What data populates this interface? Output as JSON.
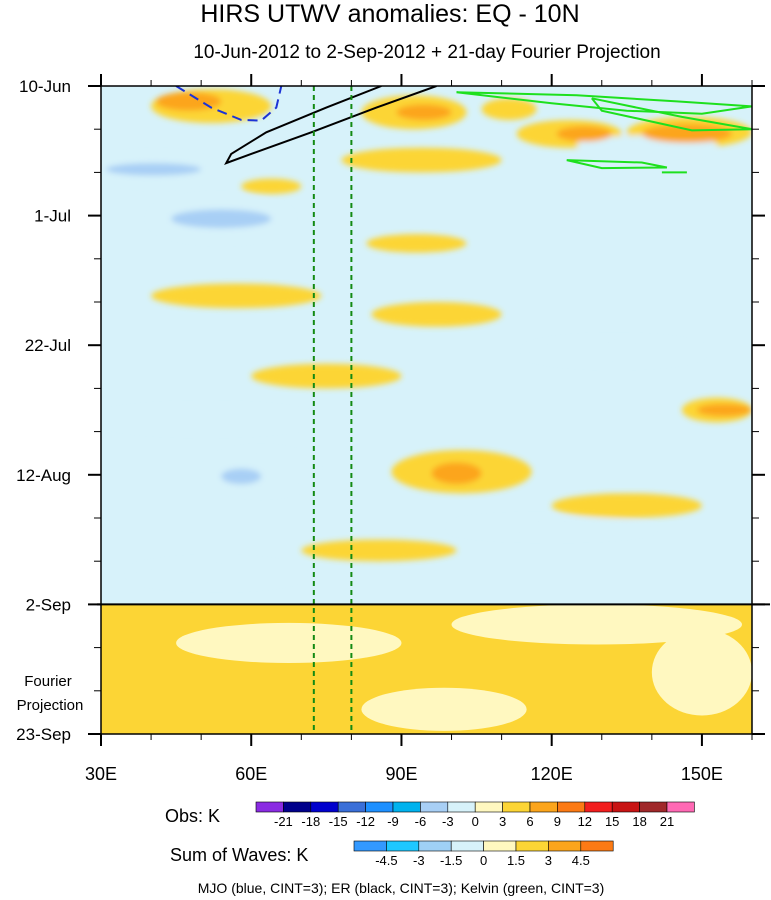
{
  "chart_data": {
    "type": "heatmap",
    "title": "HIRS UTWV anomalies: EQ - 10N",
    "subtitle": "10-Jun-2012 to 2-Sep-2012 + 21-day Fourier Projection",
    "x_range": [
      30,
      160
    ],
    "x_ticks": [
      30,
      60,
      90,
      120,
      150
    ],
    "x_tick_labels": [
      "30E",
      "60E",
      "90E",
      "120E",
      "150E"
    ],
    "y_range_days": [
      0,
      105
    ],
    "y_ticks_days": [
      0,
      21,
      42,
      63,
      84,
      105
    ],
    "y_tick_labels": [
      "10-Jun",
      "1-Jul",
      "22-Jul",
      "12-Aug",
      "2-Sep",
      "23-Sep"
    ],
    "obs_end_day": 84,
    "projection_label": [
      "Fourier",
      "Projection"
    ],
    "vertical_dashed_lines_lon": [
      72.5,
      80
    ],
    "obs_colorbar": {
      "label": "Obs: K",
      "ticks": [
        "-21",
        "-18",
        "-15",
        "-12",
        "-9",
        "-6",
        "-3",
        "0",
        "3",
        "6",
        "9",
        "12",
        "15",
        "18",
        "21"
      ],
      "colors": [
        "#8a2be2",
        "#00008b",
        "#0000cd",
        "#3a6fd8",
        "#1e90ff",
        "#00b2ee",
        "#a8cff5",
        "#d7f2fa",
        "#fff8c0",
        "#fcd535",
        "#fca51c",
        "#fc7a14",
        "#f21e1e",
        "#c81414",
        "#a0282a",
        "#ff69b4"
      ]
    },
    "waves_colorbar": {
      "label": "Sum of Waves: K",
      "ticks": [
        "-4.5",
        "-3",
        "-1.5",
        "0",
        "1.5",
        "3",
        "4.5"
      ],
      "colors": [
        "#3399ff",
        "#1ec8ff",
        "#9fd0f5",
        "#d7f2fa",
        "#fff8c0",
        "#fcd535",
        "#fca51c",
        "#fc7a14"
      ]
    },
    "contour_legend": "MJO (blue, CINT=3); ER (black, CINT=3); Kelvin (green, CINT=3)",
    "contours": {
      "mjo_blue_dashed": [
        [
          45,
          0
        ],
        [
          52,
          3.5
        ],
        [
          58,
          5.5
        ],
        [
          62,
          5.6
        ],
        [
          65,
          3.5
        ],
        [
          66,
          0
        ]
      ],
      "er_black": [
        [
          97,
          0
        ],
        [
          85,
          3.5
        ],
        [
          72,
          7.5
        ],
        [
          60,
          11
        ],
        [
          55,
          12.5
        ],
        [
          56,
          11
        ],
        [
          63,
          7.5
        ],
        [
          75,
          3.5
        ],
        [
          86,
          0
        ]
      ],
      "kelvin_green": [
        [
          [
            101,
            1
          ],
          [
            125,
            1.5
          ],
          [
            145,
            2.5
          ],
          [
            160,
            3.3
          ],
          [
            150,
            4.5
          ],
          [
            135,
            4
          ],
          [
            120,
            2.8
          ],
          [
            101,
            1
          ]
        ],
        [
          [
            128,
            2
          ],
          [
            146,
            5
          ],
          [
            160,
            7
          ],
          [
            148,
            7.2
          ],
          [
            130,
            4
          ],
          [
            128,
            2
          ]
        ],
        [
          [
            123,
            12
          ],
          [
            138,
            12.4
          ],
          [
            143,
            13.2
          ],
          [
            130,
            13.3
          ],
          [
            123,
            12
          ]
        ],
        [
          [
            142,
            14
          ],
          [
            147,
            14
          ]
        ]
      ]
    },
    "anomaly_patches": [
      {
        "level": 3,
        "lon": [
          40,
          64
        ],
        "day": [
          0.5,
          6
        ]
      },
      {
        "level": 6,
        "lon": [
          41,
          54
        ],
        "day": [
          1,
          4
        ]
      },
      {
        "level": 3,
        "lon": [
          82,
          103
        ],
        "day": [
          1.5,
          7
        ]
      },
      {
        "level": 6,
        "lon": [
          89,
          100
        ],
        "day": [
          3,
          5.5
        ]
      },
      {
        "level": 3,
        "lon": [
          113,
          134
        ],
        "day": [
          5.5,
          10
        ]
      },
      {
        "level": 6,
        "lon": [
          121,
          132
        ],
        "day": [
          6.5,
          9
        ]
      },
      {
        "level": 3,
        "lon": [
          135,
          160
        ],
        "day": [
          5,
          10
        ]
      },
      {
        "level": 6,
        "lon": [
          138,
          156
        ],
        "day": [
          6.2,
          9.2
        ]
      },
      {
        "level": 3,
        "lon": [
          106,
          117
        ],
        "day": [
          2,
          5.5
        ]
      },
      {
        "level": 3,
        "lon": [
          78,
          110
        ],
        "day": [
          10,
          14
        ]
      },
      {
        "level": 3,
        "lon": [
          58,
          70
        ],
        "day": [
          15,
          17.5
        ]
      },
      {
        "level": 3,
        "lon": [
          83,
          103
        ],
        "day": [
          24,
          27
        ]
      },
      {
        "level": 3,
        "lon": [
          40,
          74
        ],
        "day": [
          32,
          36
        ]
      },
      {
        "level": 3,
        "lon": [
          84,
          110
        ],
        "day": [
          35,
          39
        ]
      },
      {
        "level": 3,
        "lon": [
          60,
          90
        ],
        "day": [
          45,
          49
        ]
      },
      {
        "level": 3,
        "lon": [
          146,
          160
        ],
        "day": [
          50.5,
          54.5
        ]
      },
      {
        "level": 6,
        "lon": [
          149,
          160
        ],
        "day": [
          51.5,
          53.5
        ]
      },
      {
        "level": 3,
        "lon": [
          88,
          116
        ],
        "day": [
          59,
          66
        ]
      },
      {
        "level": 6,
        "lon": [
          96,
          106
        ],
        "day": [
          61,
          64.5
        ]
      },
      {
        "level": 3,
        "lon": [
          120,
          150
        ],
        "day": [
          66,
          70
        ]
      },
      {
        "level": 3,
        "lon": [
          70,
          101
        ],
        "day": [
          73.5,
          77
        ]
      },
      {
        "level": 3,
        "lon": [
          41,
          54
        ],
        "day": [
          94,
          98
        ]
      },
      {
        "level": -3,
        "lon": [
          30,
          52
        ],
        "day": [
          11,
          16
        ]
      },
      {
        "level": -6,
        "lon": [
          31,
          50
        ],
        "day": [
          12.5,
          14.5
        ]
      },
      {
        "level": -3,
        "lon": [
          40,
          68
        ],
        "day": [
          18,
          25
        ]
      },
      {
        "level": -6,
        "lon": [
          44,
          64
        ],
        "day": [
          20,
          23
        ]
      },
      {
        "level": -3,
        "lon": [
          51,
          73
        ],
        "day": [
          59,
          66
        ]
      },
      {
        "level": -6,
        "lon": [
          54,
          62
        ],
        "day": [
          62,
          64.5
        ]
      },
      {
        "level": -3,
        "lon": [
          125,
          153
        ],
        "day": [
          8,
          11
        ]
      },
      {
        "level": -3,
        "lon": [
          115,
          150
        ],
        "day": [
          41,
          45
        ]
      },
      {
        "level": -3,
        "lon": [
          30,
          72
        ],
        "day": [
          52,
          56
        ]
      },
      {
        "level": -3,
        "lon": [
          100,
          140
        ],
        "day": [
          70,
          73
        ]
      },
      {
        "level": -3,
        "lon": [
          36,
          70
        ],
        "day": [
          77,
          81
        ]
      }
    ],
    "projection_patches": [
      {
        "level": 1.5,
        "lon": [
          30,
          160
        ],
        "day": [
          84,
          105
        ]
      },
      {
        "level": 0,
        "lon": [
          45,
          90
        ],
        "day": [
          87,
          93.5
        ]
      },
      {
        "level": 0,
        "lon": [
          100,
          158
        ],
        "day": [
          84,
          90.5
        ]
      },
      {
        "level": 0,
        "lon": [
          82,
          115
        ],
        "day": [
          97.5,
          104.5
        ]
      },
      {
        "level": 0,
        "lon": [
          140,
          160
        ],
        "day": [
          88,
          102
        ]
      }
    ]
  }
}
